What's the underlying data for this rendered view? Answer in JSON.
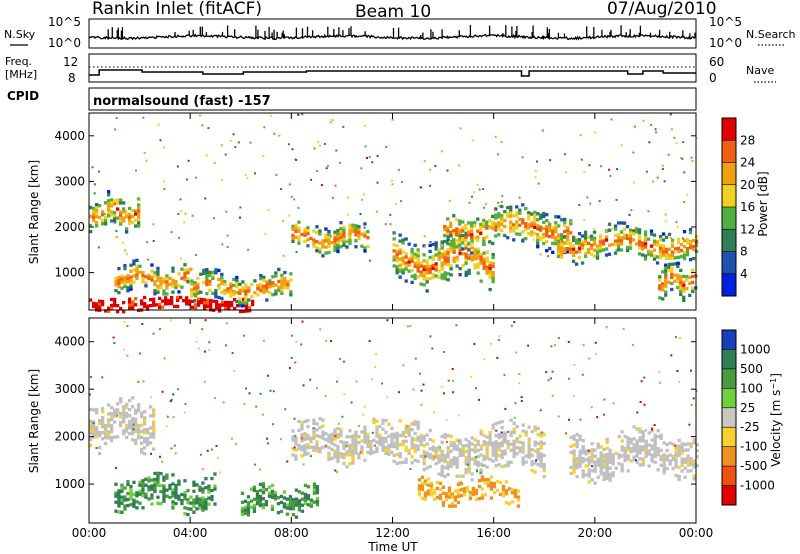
{
  "header": {
    "station": "Rankin Inlet (fitACF)",
    "beam": "Beam 10",
    "date": "07/Aug/2010"
  },
  "noise_panel": {
    "left_label": "N.Sky",
    "right_label": "N.Search",
    "tick_top": "10^5",
    "tick_bottom": "10^0"
  },
  "freq_panel": {
    "left_label_line1": "Freq.",
    "left_label_line2": "[MHz]",
    "right_label": "Nave",
    "left_tick_top": "12",
    "left_tick_bottom": "8",
    "right_tick_top": "60",
    "right_tick_bottom": "0"
  },
  "cpid": {
    "label": "CPID",
    "value": "normalsound (fast) -157"
  },
  "colors": {
    "power_scale": [
      "#0020e0",
      "#2050b0",
      "#2f7f55",
      "#4fb040",
      "#f0d020",
      "#f0a010",
      "#f06010",
      "#e00000"
    ],
    "velocity_scale": [
      "#1a3db8",
      "#2f7f55",
      "#4a9a40",
      "#70d040",
      "#c8c8c0",
      "#f8d030",
      "#f09020",
      "#f05010",
      "#e00000"
    ],
    "ground_scatter": "#c0c0c0"
  },
  "chart_data": [
    {
      "type": "heatmap",
      "name": "power",
      "xlabel": "",
      "ylabel": "Slant Range [km]",
      "xlim": [
        "00:00",
        "24:00"
      ],
      "ylim": [
        180,
        4500
      ],
      "x_ticks": [
        "00:00",
        "04:00",
        "08:00",
        "12:00",
        "16:00",
        "20:00",
        "00:00"
      ],
      "y_ticks": [
        1000,
        2000,
        3000,
        4000
      ],
      "colorbar": {
        "label": "Power [dB]",
        "tick_labels": [
          "4",
          "8",
          "12",
          "16",
          "20",
          "24",
          "28"
        ]
      },
      "bands": [
        {
          "hours": [
            0,
            6.5
          ],
          "range_km": [
            180,
            500
          ],
          "value": "28+"
        },
        {
          "hours": [
            0,
            2
          ],
          "range_km": [
            2000,
            2700
          ],
          "value": "12-20"
        },
        {
          "hours": [
            1,
            4
          ],
          "range_km": [
            600,
            1200
          ],
          "value": "8-20"
        },
        {
          "hours": [
            4,
            8
          ],
          "range_km": [
            400,
            1000
          ],
          "value": "16-28"
        },
        {
          "hours": [
            8,
            11
          ],
          "range_km": [
            1500,
            2100
          ],
          "value": "12-24"
        },
        {
          "hours": [
            12,
            16
          ],
          "range_km": [
            800,
            1800
          ],
          "value": "8-24"
        },
        {
          "hours": [
            14,
            19
          ],
          "range_km": [
            1600,
            2400
          ],
          "value": "8-20"
        },
        {
          "hours": [
            18.5,
            24
          ],
          "range_km": [
            1300,
            2000
          ],
          "value": "8-24"
        },
        {
          "hours": [
            22.5,
            24
          ],
          "range_km": [
            500,
            1200
          ],
          "value": "12-28"
        }
      ]
    },
    {
      "type": "heatmap",
      "name": "velocity",
      "xlabel": "Time UT",
      "ylabel": "Slant Range [km]",
      "xlim": [
        "00:00",
        "24:00"
      ],
      "ylim": [
        180,
        4500
      ],
      "x_ticks": [
        "00:00",
        "04:00",
        "08:00",
        "12:00",
        "16:00",
        "20:00",
        "00:00"
      ],
      "y_ticks": [
        1000,
        2000,
        3000,
        4000
      ],
      "colorbar": {
        "label": "Velocity [m s^-1]",
        "tick_labels": [
          "1000",
          "500",
          "100",
          "25",
          "-25",
          "-100",
          "-500",
          "-1000"
        ]
      },
      "bands": [
        {
          "hours": [
            0,
            2.5
          ],
          "range_km": [
            1800,
            2800
          ],
          "value": "ground scatter"
        },
        {
          "hours": [
            1,
            5
          ],
          "range_km": [
            500,
            1200
          ],
          "value": "25 to 500"
        },
        {
          "hours": [
            6,
            9
          ],
          "range_km": [
            400,
            1000
          ],
          "value": "25 to 500"
        },
        {
          "hours": [
            8,
            12
          ],
          "range_km": [
            1500,
            2300
          ],
          "value": "ground scatter"
        },
        {
          "hours": [
            12,
            18
          ],
          "range_km": [
            1200,
            2200
          ],
          "value": "ground scatter"
        },
        {
          "hours": [
            13,
            17
          ],
          "range_km": [
            600,
            1100
          ],
          "value": "-100 to -500"
        },
        {
          "hours": [
            19,
            24
          ],
          "range_km": [
            1200,
            2100
          ],
          "value": "ground scatter"
        }
      ]
    }
  ]
}
